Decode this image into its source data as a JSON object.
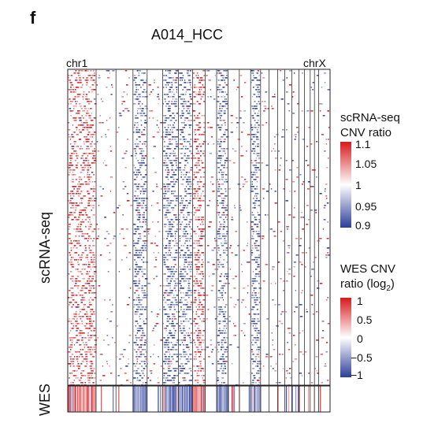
{
  "panel_letter": "f",
  "chart_data": {
    "type": "heatmap",
    "title": "A014_HCC",
    "x_start_label": "chr1",
    "x_end_label": "chrX",
    "row_groups": [
      "scRNA-seq",
      "WES"
    ],
    "legends": [
      {
        "title_line1": "scRNA-seq",
        "title_line2": "CNV ratio",
        "ticks": [
          "1.1",
          "1.05",
          "1",
          "0.95",
          "0.9"
        ],
        "values": [
          1.1,
          1.05,
          1.0,
          0.95,
          0.9
        ],
        "colors": [
          "#d7191c",
          "#ffffff",
          "#2c3e99"
        ]
      },
      {
        "title_line1": "WES CNV",
        "title_line2_main": "ratio (log",
        "title_line2_sub": "2",
        "title_line2_end": ")",
        "ticks": [
          "1",
          "0.5",
          "0",
          "−0.5",
          "−1"
        ],
        "values": [
          1,
          0.5,
          0,
          -0.5,
          -1
        ],
        "colors": [
          "#d7191c",
          "#ffffff",
          "#2c3e99"
        ]
      }
    ],
    "chromosome_bands": [
      {
        "chr": "1",
        "state": "gain"
      },
      {
        "chr": "2",
        "state": "neutral"
      },
      {
        "chr": "3",
        "state": "neutral"
      },
      {
        "chr": "4",
        "state": "loss"
      },
      {
        "chr": "5",
        "state": "neutral"
      },
      {
        "chr": "6",
        "state": "loss"
      },
      {
        "chr": "7",
        "state": "loss"
      },
      {
        "chr": "8",
        "state": "gain"
      },
      {
        "chr": "9",
        "state": "neutral"
      },
      {
        "chr": "10",
        "state": "loss"
      },
      {
        "chr": "11",
        "state": "neutral"
      },
      {
        "chr": "12",
        "state": "neutral"
      },
      {
        "chr": "13",
        "state": "loss"
      },
      {
        "chr": "14",
        "state": "neutral"
      },
      {
        "chr": "15",
        "state": "neutral"
      },
      {
        "chr": "16",
        "state": "neutral"
      },
      {
        "chr": "17",
        "state": "neutral"
      },
      {
        "chr": "18",
        "state": "neutral"
      },
      {
        "chr": "19",
        "state": "neutral"
      },
      {
        "chr": "20",
        "state": "neutral"
      },
      {
        "chr": "21",
        "state": "neutral"
      },
      {
        "chr": "22",
        "state": "neutral"
      },
      {
        "chr": "X",
        "state": "neutral"
      }
    ]
  }
}
